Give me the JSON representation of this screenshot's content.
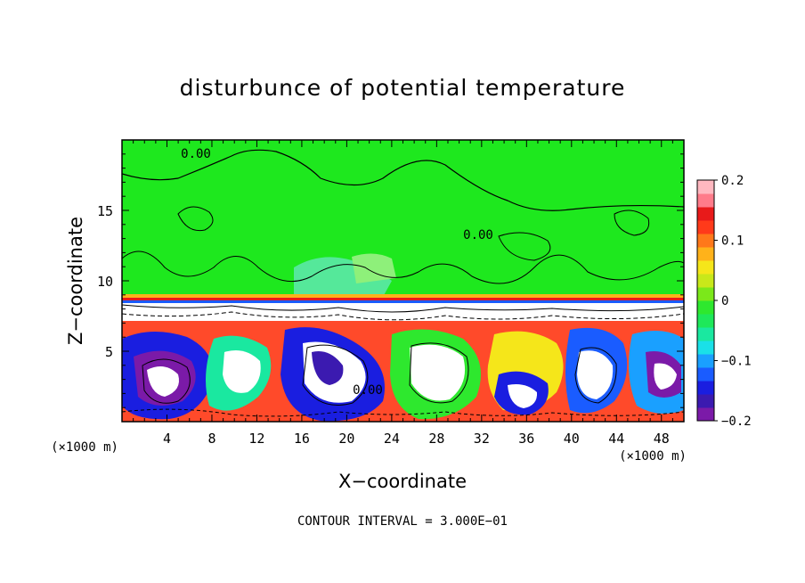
{
  "chart_data": {
    "type": "heatmap",
    "title": "disturbunce of potential temperature",
    "xlabel": "X−coordinate",
    "ylabel": "Z−coordinate",
    "x_unit_left": "(×1000 m)",
    "x_unit_right": "(×1000 m)",
    "x_ticks": [
      "4",
      "8",
      "12",
      "16",
      "20",
      "24",
      "28",
      "32",
      "36",
      "40",
      "44",
      "48"
    ],
    "y_ticks": [
      "5",
      "10",
      "15"
    ],
    "xlim": [
      0,
      50
    ],
    "ylim": [
      0,
      20
    ],
    "colorbar": {
      "ticks": [
        "0.2",
        "0.1",
        "0",
        "−0.1",
        "−0.2"
      ],
      "range": [
        -0.2,
        0.2
      ],
      "colors": [
        "#7b1aa8",
        "#3b1ab0",
        "#1a1ee0",
        "#1a5cff",
        "#1aa0ff",
        "#1ae0e8",
        "#1ae8a0",
        "#1ee85a",
        "#2ee82e",
        "#7be81a",
        "#c8e81a",
        "#f5e61a",
        "#ffb21a",
        "#ff781a",
        "#ff3a1a",
        "#e81a1a",
        "#ff7b8a",
        "#ffb8c0"
      ]
    },
    "contour_labels": [
      "0.00",
      "0.00",
      "0.00"
    ],
    "footer": "CONTOUR INTERVAL = 3.000E−01"
  }
}
